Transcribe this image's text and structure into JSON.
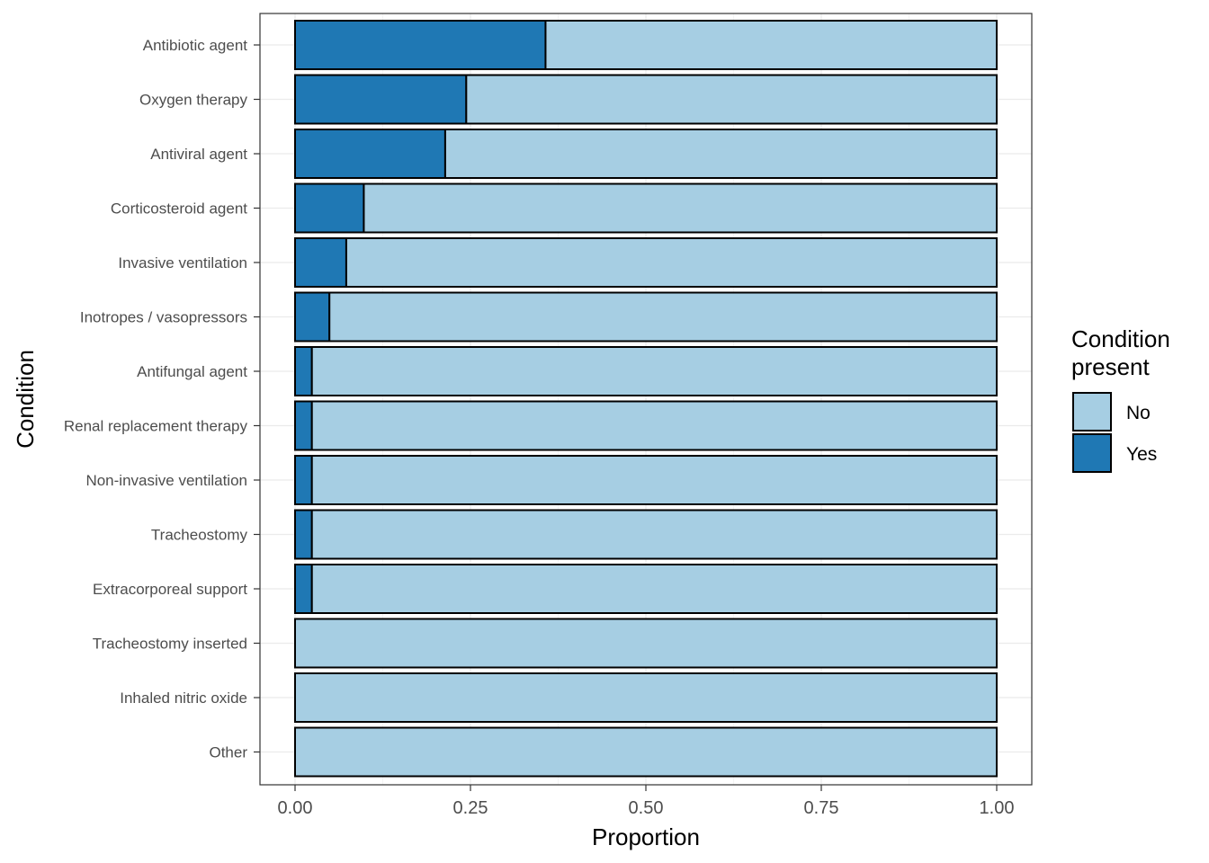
{
  "chart_data": {
    "type": "bar",
    "orientation": "horizontal",
    "stacked": true,
    "xlabel": "Proportion",
    "ylabel": "Condition",
    "xlim": [
      0,
      1
    ],
    "x_ticks": [
      "0.00",
      "0.25",
      "0.50",
      "0.75",
      "1.00"
    ],
    "x_tick_values": [
      0,
      0.25,
      0.5,
      0.75,
      1.0
    ],
    "grid": true,
    "categories": [
      "Antibiotic agent",
      "Oxygen therapy",
      "Antiviral agent",
      "Corticosteroid agent",
      "Invasive ventilation",
      "Inotropes / vasopressors",
      "Antifungal agent",
      "Renal replacement therapy",
      "Non-invasive ventilation",
      "Tracheostomy",
      "Extracorporeal support",
      "Tracheostomy inserted",
      "Inhaled nitric oxide",
      "Other"
    ],
    "series": [
      {
        "name": "Yes",
        "color": "#1f78b4",
        "values": [
          0.357,
          0.244,
          0.214,
          0.098,
          0.073,
          0.049,
          0.024,
          0.024,
          0.024,
          0.024,
          0.024,
          0,
          0,
          0
        ]
      },
      {
        "name": "No",
        "color": "#a6cee3",
        "values": [
          0.643,
          0.756,
          0.786,
          0.902,
          0.927,
          0.951,
          0.976,
          0.976,
          0.976,
          0.976,
          0.976,
          1,
          1,
          1
        ]
      }
    ],
    "legend": {
      "title_lines": [
        "Condition",
        "present"
      ],
      "position": "right",
      "entries": [
        {
          "label": "No",
          "color": "#a6cee3"
        },
        {
          "label": "Yes",
          "color": "#1f78b4"
        }
      ]
    }
  }
}
